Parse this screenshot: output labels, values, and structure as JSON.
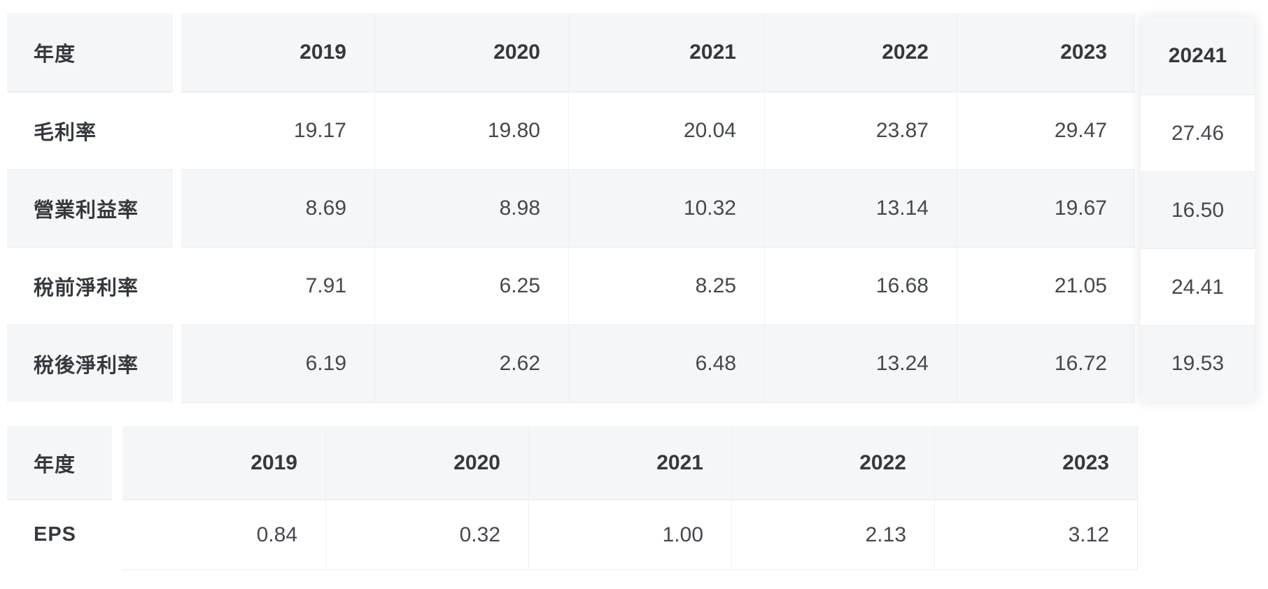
{
  "colors": {
    "page_background": "#ffffff",
    "header_background": "#f5f6f7",
    "alt_row_background": "#f5f6f7",
    "divider": "#eaebed",
    "label_text": "#35383d",
    "value_text": "#45484d"
  },
  "profitability_table": {
    "corner_label": "年度",
    "years": [
      "2019",
      "2020",
      "2021",
      "2022",
      "2023"
    ],
    "rows": [
      {
        "label": "毛利率",
        "values": [
          "19.17",
          "19.80",
          "20.04",
          "23.87",
          "29.47"
        ]
      },
      {
        "label": "營業利益率",
        "values": [
          "8.69",
          "8.98",
          "10.32",
          "13.14",
          "19.67"
        ]
      },
      {
        "label": "稅前淨利率",
        "values": [
          "7.91",
          "6.25",
          "8.25",
          "16.68",
          "21.05"
        ]
      },
      {
        "label": "稅後淨利率",
        "values": [
          "6.19",
          "2.62",
          "6.48",
          "13.24",
          "16.72"
        ]
      }
    ],
    "latest_quarter_column": {
      "header": "20241",
      "values": [
        "27.46",
        "16.50",
        "24.41",
        "19.53"
      ]
    }
  },
  "eps_table": {
    "corner_label": "年度",
    "years": [
      "2019",
      "2020",
      "2021",
      "2022",
      "2023"
    ],
    "rows": [
      {
        "label": "EPS",
        "values": [
          "0.84",
          "0.32",
          "1.00",
          "2.13",
          "3.12"
        ]
      }
    ]
  },
  "chart_data": [
    {
      "type": "table",
      "columns": [
        "年度",
        "2019",
        "2020",
        "2021",
        "2022",
        "2023",
        "20241"
      ],
      "rows": [
        [
          "毛利率",
          19.17,
          19.8,
          20.04,
          23.87,
          29.47,
          27.46
        ],
        [
          "營業利益率",
          8.69,
          8.98,
          10.32,
          13.14,
          19.67,
          16.5
        ],
        [
          "稅前淨利率",
          7.91,
          6.25,
          8.25,
          16.68,
          21.05,
          24.41
        ],
        [
          "稅後淨利率",
          6.19,
          2.62,
          6.48,
          13.24,
          16.72,
          19.53
        ]
      ]
    },
    {
      "type": "table",
      "columns": [
        "年度",
        "2019",
        "2020",
        "2021",
        "2022",
        "2023"
      ],
      "rows": [
        [
          "EPS",
          0.84,
          0.32,
          1.0,
          2.13,
          3.12
        ]
      ]
    }
  ]
}
